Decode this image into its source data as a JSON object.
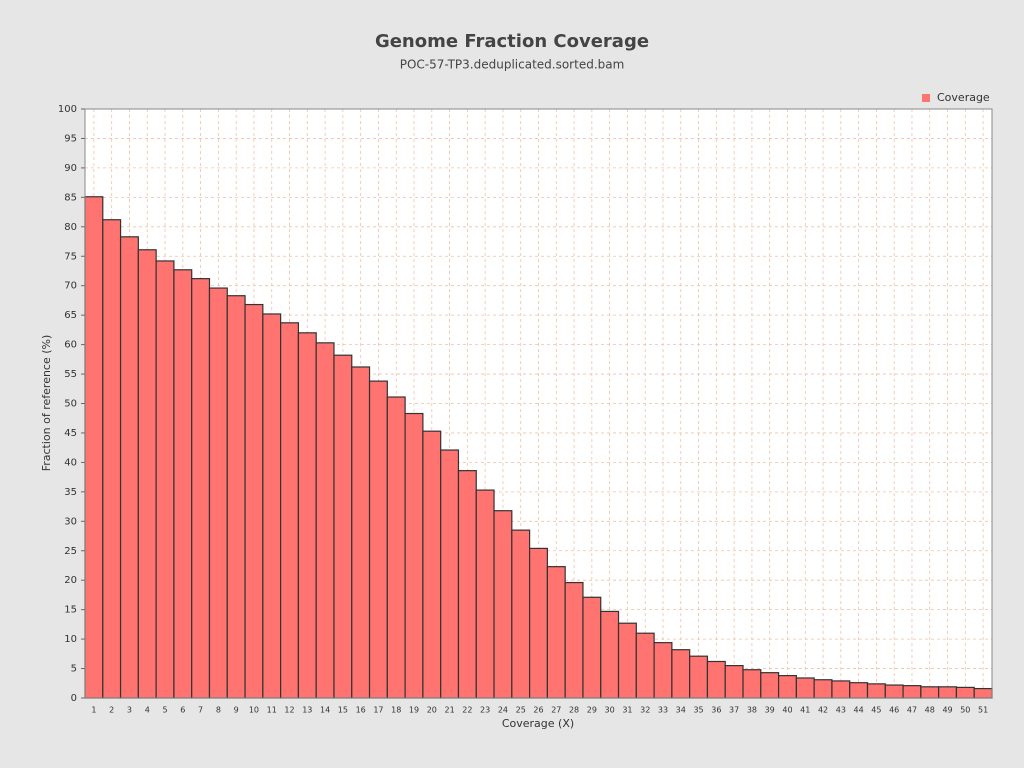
{
  "chart_data": {
    "type": "bar",
    "title": "Genome Fraction Coverage",
    "subtitle": "POC-57-TP3.deduplicated.sorted.bam",
    "x_label": "Coverage (X)",
    "y_label": "Fraction of reference (%)",
    "categories": [
      "1",
      "2",
      "3",
      "4",
      "5",
      "6",
      "7",
      "8",
      "9",
      "10",
      "11",
      "12",
      "13",
      "14",
      "15",
      "16",
      "17",
      "18",
      "19",
      "20",
      "21",
      "22",
      "23",
      "24",
      "25",
      "26",
      "27",
      "28",
      "29",
      "30",
      "31",
      "32",
      "33",
      "34",
      "35",
      "36",
      "37",
      "38",
      "39",
      "40",
      "41",
      "42",
      "43",
      "44",
      "45",
      "46",
      "47",
      "48",
      "49",
      "50",
      "51"
    ],
    "series": [
      {
        "name": "Coverage",
        "color": "#ff7370",
        "values": [
          85.1,
          81.2,
          78.3,
          76.1,
          74.2,
          72.7,
          71.2,
          69.6,
          68.3,
          66.8,
          65.2,
          63.7,
          62.0,
          60.3,
          58.2,
          56.2,
          53.8,
          51.1,
          48.3,
          45.3,
          42.1,
          38.6,
          35.3,
          31.8,
          28.5,
          25.4,
          22.3,
          19.6,
          17.1,
          14.7,
          12.7,
          11.0,
          9.4,
          8.2,
          7.1,
          6.2,
          5.5,
          4.8,
          4.3,
          3.8,
          3.4,
          3.1,
          2.9,
          2.6,
          2.4,
          2.2,
          2.1,
          1.9,
          1.9,
          1.8,
          1.6
        ]
      }
    ],
    "ylim": [
      0,
      100
    ],
    "yticks": [
      0,
      5,
      10,
      15,
      20,
      25,
      30,
      35,
      40,
      45,
      50,
      55,
      60,
      65,
      70,
      75,
      80,
      85,
      90,
      95,
      100
    ],
    "grid": true,
    "legend": "top-right"
  }
}
